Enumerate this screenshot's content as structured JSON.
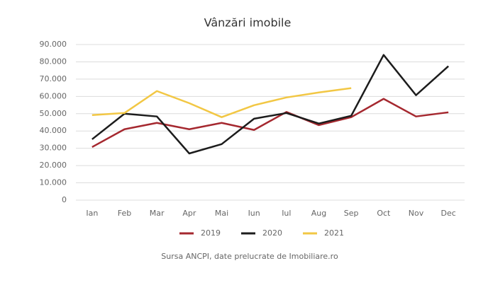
{
  "chart_data": {
    "type": "line",
    "title": "Vânzări imobile",
    "categories": [
      "Ian",
      "Feb",
      "Mar",
      "Apr",
      "Mai",
      "Iun",
      "Iul",
      "Aug",
      "Sep",
      "Oct",
      "Nov",
      "Dec"
    ],
    "series": [
      {
        "name": "2019",
        "color": "#a5282f",
        "values": [
          30700,
          41000,
          44700,
          41000,
          44700,
          40600,
          51000,
          43400,
          48000,
          58600,
          48400,
          50800
        ]
      },
      {
        "name": "2020",
        "color": "#1c1c1c",
        "values": [
          35200,
          50000,
          48400,
          27000,
          32400,
          47100,
          50400,
          44300,
          48800,
          84000,
          60700,
          77500
        ]
      },
      {
        "name": "2021",
        "color": "#f2c744",
        "values": [
          49200,
          50400,
          63100,
          56100,
          48000,
          54900,
          59400,
          62300,
          64800,
          null,
          null,
          null
        ]
      }
    ],
    "ylim": [
      0,
      90000
    ],
    "yticks": [
      0,
      {
        "value": 10000,
        "label": "10.000"
      },
      {
        "value": 20000,
        "label": "20.000"
      },
      {
        "value": 30000,
        "label": "30.000"
      },
      {
        "value": 40000,
        "label": "40.000"
      },
      {
        "value": 50000,
        "label": "50.000"
      },
      {
        "value": 60000,
        "label": "60.000"
      },
      {
        "value": 70000,
        "label": "70.000"
      },
      {
        "value": 80000,
        "label": "80.000"
      },
      {
        "value": 90000,
        "label": "90.000"
      }
    ],
    "grid": true,
    "legend": "bottom",
    "source": "Sursa ANCPI, date prelucrate de Imobiliare.ro"
  }
}
